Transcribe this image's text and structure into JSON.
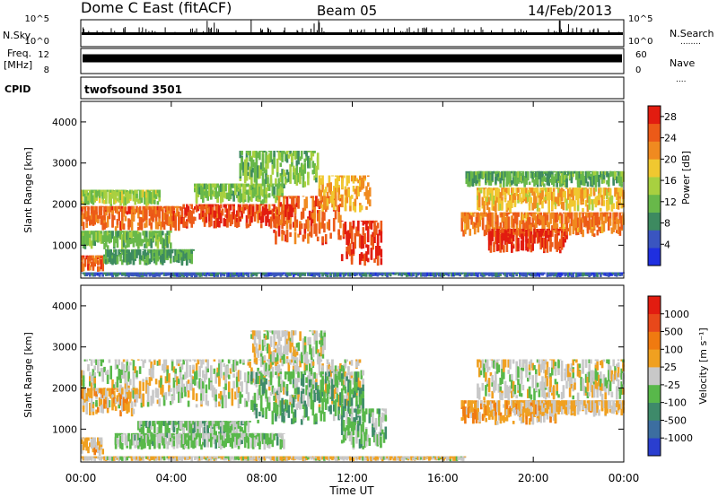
{
  "header": {
    "station": "Dome C East (fitACF)",
    "beam": "Beam 05",
    "date": "14/Feb/2013"
  },
  "side_labels": {
    "nsky": "N.Sky",
    "nsearch": "N.Search",
    "freq_top": "Freq.",
    "freq_bottom": "[MHz]",
    "nave": "Nave",
    "cpid": "CPID",
    "nsearch_dots": "........",
    "nave_dots": "...."
  },
  "noise_panel": {
    "left_ticks": [
      "10^5",
      "10^0"
    ],
    "right_ticks": [
      "10^5",
      "10^0"
    ]
  },
  "freq_panel": {
    "left_ticks": [
      "12",
      "8"
    ],
    "right_ticks": [
      "60",
      "0"
    ],
    "freq_level": 10.5,
    "freq_range": [
      8,
      12
    ]
  },
  "cpid_panel": {
    "program": "twofsound 3501"
  },
  "x_axis": {
    "label": "Time UT",
    "ticks": [
      "00:00",
      "04:00",
      "08:00",
      "12:00",
      "16:00",
      "20:00",
      "00:00"
    ],
    "range_hours": [
      0,
      24
    ]
  },
  "chart_data": [
    {
      "type": "heatmap",
      "title": "",
      "xlabel": "Time UT",
      "ylabel": "Slant Range [km]",
      "y_ticks": [
        "1000",
        "2000",
        "3000",
        "4000"
      ],
      "ylim": [
        200,
        4500
      ],
      "xlim_hours": [
        0,
        24
      ],
      "colorbar": {
        "label": "Power [dB]",
        "ticks": [
          "4",
          "8",
          "12",
          "16",
          "20",
          "24",
          "28"
        ],
        "range": [
          0,
          30
        ],
        "colors": [
          "#1f2fe0",
          "#3a55c0",
          "#3d8a60",
          "#68b84a",
          "#a8d040",
          "#f0c830",
          "#f08a20",
          "#ec5a18",
          "#e21c10"
        ]
      },
      "bands": [
        {
          "t0": 0.0,
          "t1": 4.5,
          "r0": 1350,
          "r1": 1950,
          "value": 24
        },
        {
          "t0": 0.0,
          "t1": 3.5,
          "r0": 1950,
          "r1": 2350,
          "value": 14
        },
        {
          "t0": 0.0,
          "t1": 4.0,
          "r0": 900,
          "r1": 1350,
          "value": 12
        },
        {
          "t0": 4.5,
          "t1": 9.5,
          "r0": 1400,
          "r1": 2000,
          "value": 26
        },
        {
          "t0": 5.0,
          "t1": 9.0,
          "r0": 2000,
          "r1": 2500,
          "value": 13
        },
        {
          "t0": 7.0,
          "t1": 10.5,
          "r0": 2400,
          "r1": 3300,
          "value": 12
        },
        {
          "t0": 8.5,
          "t1": 11.5,
          "r0": 1000,
          "r1": 2200,
          "value": 25
        },
        {
          "t0": 10.5,
          "t1": 12.8,
          "r0": 1800,
          "r1": 2700,
          "value": 20
        },
        {
          "t0": 11.5,
          "t1": 13.3,
          "r0": 500,
          "r1": 1600,
          "value": 27
        },
        {
          "t0": 0.0,
          "t1": 1.0,
          "r0": 350,
          "r1": 750,
          "value": 25
        },
        {
          "t0": 1.0,
          "t1": 5.0,
          "r0": 500,
          "r1": 900,
          "value": 10
        },
        {
          "t0": 0.0,
          "t1": 17.0,
          "r0": 220,
          "r1": 340,
          "value": 6
        },
        {
          "t0": 16.8,
          "t1": 24.0,
          "r0": 1200,
          "r1": 1800,
          "value": 23
        },
        {
          "t0": 18.0,
          "t1": 21.5,
          "r0": 800,
          "r1": 1400,
          "value": 27
        },
        {
          "t0": 17.5,
          "t1": 24.0,
          "r0": 1800,
          "r1": 2400,
          "value": 19
        },
        {
          "t0": 17.0,
          "t1": 24.0,
          "r0": 2400,
          "r1": 2800,
          "value": 11
        },
        {
          "t0": 17.0,
          "t1": 24.0,
          "r0": 220,
          "r1": 340,
          "value": 5
        }
      ]
    },
    {
      "type": "heatmap",
      "title": "",
      "xlabel": "Time UT",
      "ylabel": "Slant Range [km]",
      "y_ticks": [
        "1000",
        "2000",
        "3000",
        "4000"
      ],
      "ylim": [
        200,
        4500
      ],
      "xlim_hours": [
        0,
        24
      ],
      "colorbar": {
        "label": "Velocity [m s⁻¹]",
        "ticks": [
          "1000",
          "500",
          "100",
          "25",
          "-25",
          "-100",
          "-500",
          "-1000"
        ],
        "range": [
          -1200,
          1200
        ],
        "colors": [
          "#2a3ecf",
          "#3c6ea0",
          "#3e8a6a",
          "#58b84a",
          "#c8c8c8",
          "#f0a020",
          "#f07a10",
          "#e8481a",
          "#e21c10"
        ]
      },
      "bands": [
        {
          "t0": 0.0,
          "t1": 12.5,
          "r0": 1500,
          "r1": 2700,
          "value": 0
        },
        {
          "t0": 7.5,
          "t1": 10.8,
          "r0": 2500,
          "r1": 3400,
          "value": 0
        },
        {
          "t0": 0.0,
          "t1": 2.5,
          "r0": 1300,
          "r1": 2000,
          "value": 250
        },
        {
          "t0": 2.5,
          "t1": 7.5,
          "r0": 800,
          "r1": 1200,
          "value": -250
        },
        {
          "t0": 7.5,
          "t1": 12.5,
          "r0": 1100,
          "r1": 2400,
          "value": -300
        },
        {
          "t0": 1.5,
          "t1": 9.0,
          "r0": 500,
          "r1": 900,
          "value": -150
        },
        {
          "t0": 0.0,
          "t1": 1.0,
          "r0": 350,
          "r1": 800,
          "value": 200
        },
        {
          "t0": 11.5,
          "t1": 13.5,
          "r0": 500,
          "r1": 1500,
          "value": -200
        },
        {
          "t0": 16.8,
          "t1": 21.0,
          "r0": 1100,
          "r1": 1700,
          "value": 300
        },
        {
          "t0": 19.0,
          "t1": 24.0,
          "r0": 1300,
          "r1": 1700,
          "value": 150
        },
        {
          "t0": 17.5,
          "t1": 24.0,
          "r0": 1700,
          "r1": 2700,
          "value": 0
        },
        {
          "t0": 0.0,
          "t1": 17.0,
          "r0": 220,
          "r1": 340,
          "value": 80
        }
      ]
    }
  ]
}
